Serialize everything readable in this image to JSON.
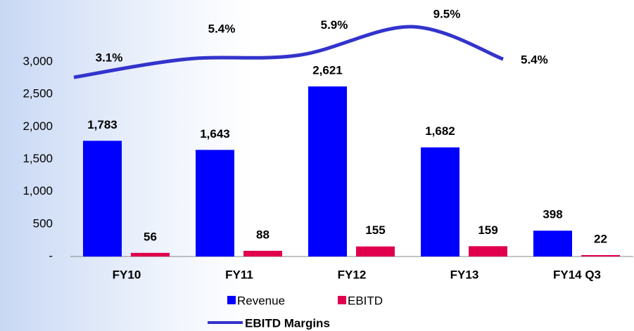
{
  "chart_data": {
    "type": "bar",
    "categories": [
      "FY10",
      "FY11",
      "FY12",
      "FY13",
      "FY14 Q3"
    ],
    "series": [
      {
        "name": "Revenue",
        "color": "#0000ff",
        "values": [
          1783,
          1643,
          2621,
          1682,
          398
        ],
        "value_labels": [
          "1,783",
          "1,643",
          "2,621",
          "1,682",
          "398"
        ]
      },
      {
        "name": "EBITD",
        "color": "#e0004d",
        "values": [
          56,
          88,
          155,
          159,
          22
        ]
      },
      {
        "name": "EBITD Margins",
        "type": "line",
        "color": "#3333cc",
        "values": [
          3.1,
          5.4,
          5.9,
          9.5,
          5.4
        ],
        "value_labels": [
          "3.1%",
          "5.4%",
          "5.9%",
          "9.5%",
          "5.4%"
        ]
      }
    ],
    "ylim": [
      0,
      3000
    ],
    "yticks": [
      {
        "value": 0,
        "label": "-"
      },
      500,
      {
        "value": 1000,
        "label": "1,000"
      },
      {
        "value": 1500,
        "label": "1,500"
      },
      {
        "value": 2000,
        "label": "2,000"
      },
      {
        "value": 2500,
        "label": "2,500"
      },
      {
        "value": 3000,
        "label": "3,000"
      }
    ]
  }
}
